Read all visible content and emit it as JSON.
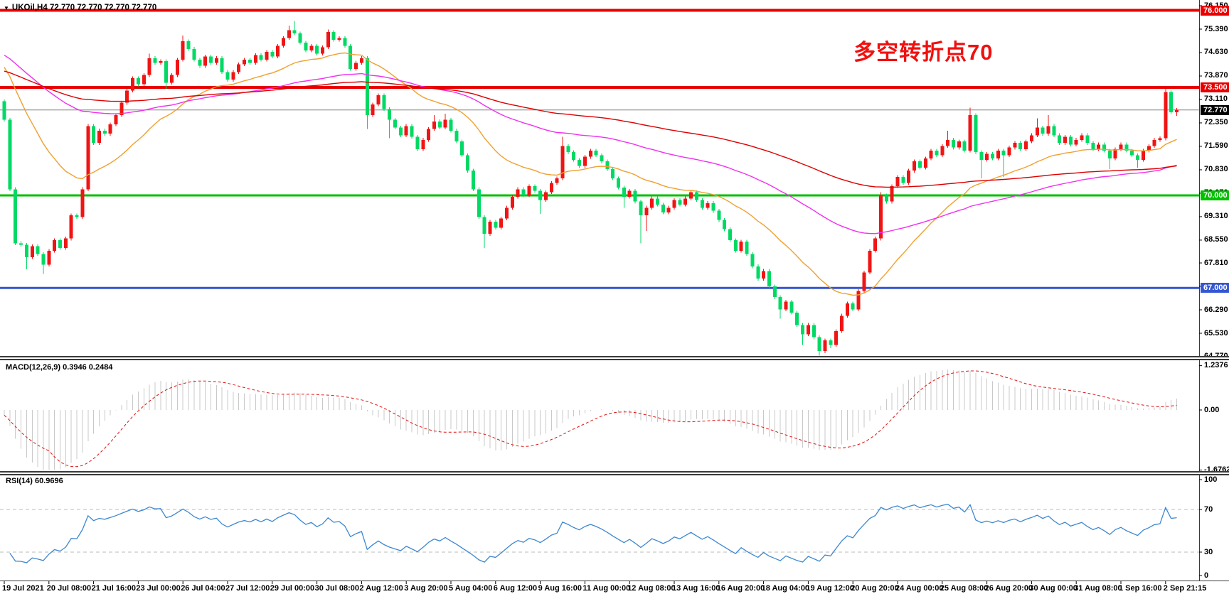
{
  "symbol_bar": {
    "dropdown_icon": "▼",
    "text": "UKOil,H4 72.770 72.770 72.770 72.770"
  },
  "annotation": {
    "text": "多空转折点70",
    "color": "#f01010"
  },
  "chart_data": {
    "type": "candlestick",
    "title": "UKOil,H4",
    "symbol": "UKOil",
    "timeframe": "H4",
    "color_convention": "chinese (red = up, green = down)",
    "bull_color": "#f01414",
    "bear_color": "#00d964",
    "first_open": 73.05,
    "closes": [
      72.45,
      70.2,
      68.45,
      68.4,
      68.0,
      68.35,
      68.1,
      67.75,
      68.2,
      68.55,
      68.3,
      68.6,
      69.35,
      69.3,
      70.2,
      72.25,
      71.7,
      72.1,
      72.0,
      72.3,
      72.6,
      73.0,
      73.4,
      73.8,
      73.6,
      73.9,
      74.45,
      74.3,
      74.35,
      73.65,
      73.9,
      74.4,
      75.0,
      74.75,
      74.4,
      74.2,
      74.5,
      74.3,
      74.45,
      74.0,
      73.75,
      74.0,
      74.25,
      74.4,
      74.3,
      74.55,
      74.4,
      74.65,
      74.5,
      74.85,
      75.1,
      75.35,
      75.25,
      74.95,
      74.7,
      74.85,
      74.6,
      74.8,
      75.3,
      75.05,
      75.1,
      74.85,
      74.1,
      74.3,
      74.45,
      72.6,
      72.95,
      73.25,
      72.8,
      72.45,
      72.2,
      71.95,
      72.25,
      71.9,
      71.5,
      71.8,
      72.15,
      72.4,
      72.2,
      72.45,
      72.1,
      71.75,
      71.3,
      70.8,
      70.2,
      69.3,
      68.75,
      69.15,
      68.95,
      69.25,
      69.6,
      69.95,
      70.2,
      70.0,
      70.3,
      70.15,
      69.85,
      70.1,
      70.4,
      70.55,
      71.6,
      71.4,
      71.15,
      70.95,
      71.25,
      71.45,
      71.3,
      71.1,
      70.85,
      70.55,
      70.25,
      69.95,
      70.15,
      69.8,
      69.35,
      69.6,
      69.9,
      69.7,
      69.45,
      69.6,
      69.85,
      69.7,
      69.9,
      70.1,
      69.85,
      69.6,
      69.75,
      69.5,
      69.2,
      68.9,
      68.55,
      68.2,
      68.5,
      68.1,
      67.7,
      67.3,
      67.55,
      67.05,
      66.7,
      66.3,
      66.55,
      66.2,
      65.8,
      65.5,
      65.8,
      65.4,
      64.95,
      65.3,
      65.15,
      65.6,
      66.1,
      66.5,
      66.3,
      66.9,
      67.5,
      68.2,
      68.6,
      70.0,
      69.8,
      70.3,
      70.6,
      70.4,
      70.8,
      71.1,
      70.9,
      71.2,
      71.45,
      71.3,
      71.6,
      71.8,
      71.55,
      71.75,
      71.45,
      72.6,
      71.4,
      71.15,
      71.35,
      71.2,
      71.45,
      71.3,
      71.55,
      71.7,
      71.5,
      71.75,
      71.95,
      72.2,
      72.0,
      72.25,
      71.95,
      71.7,
      71.9,
      71.65,
      71.8,
      71.95,
      71.7,
      71.5,
      71.65,
      71.45,
      71.2,
      71.5,
      71.65,
      71.45,
      71.3,
      71.15,
      71.45,
      71.6,
      71.8,
      71.85,
      73.35,
      72.7,
      72.77
    ],
    "default_wick": 0.06,
    "wick_overrides": {
      "4": [
        0,
        0.4
      ],
      "7": [
        0,
        0.3
      ],
      "26": [
        0.15,
        0
      ],
      "29": [
        0,
        0.2
      ],
      "32": [
        0.18,
        0
      ],
      "51": [
        0.15,
        0
      ],
      "52": [
        0.3,
        0
      ],
      "58": [
        0.08,
        0
      ],
      "65": [
        0,
        0.45
      ],
      "69": [
        0,
        0.6
      ],
      "77": [
        0.2,
        0
      ],
      "79": [
        0.2,
        0
      ],
      "86": [
        0,
        0.45
      ],
      "96": [
        0,
        0.45
      ],
      "100": [
        0.3,
        0
      ],
      "111": [
        0,
        0.35
      ],
      "114": [
        0,
        0.9
      ],
      "115": [
        0,
        0.5
      ],
      "139": [
        0,
        0.3
      ],
      "143": [
        0,
        0.35
      ],
      "146": [
        0,
        0.15
      ],
      "148": [
        0.05,
        0.1
      ],
      "157": [
        0.1,
        0
      ],
      "169": [
        0.3,
        0
      ],
      "173": [
        0.25,
        0
      ],
      "175": [
        0,
        0.6
      ],
      "179": [
        0,
        0.7
      ],
      "185": [
        0.3,
        0
      ],
      "187": [
        0.35,
        0
      ],
      "198": [
        0,
        0.35
      ],
      "203": [
        0,
        0.25
      ],
      "208": [
        0.1,
        0
      ],
      "210": [
        0.05,
        0.12
      ]
    },
    "price_axis": {
      "ticks": [
        76.15,
        75.39,
        74.63,
        73.87,
        73.11,
        72.35,
        71.59,
        70.83,
        70.07,
        69.31,
        68.55,
        67.81,
        67.05,
        66.29,
        65.53,
        64.77
      ],
      "min": 64.75,
      "max": 76.33
    },
    "levels": [
      {
        "price": 76.0,
        "label": "76.000",
        "color": "#e80000",
        "thickness": 4
      },
      {
        "price": 73.5,
        "label": "73.500",
        "color": "#e80000",
        "thickness": 4
      },
      {
        "price": 70.0,
        "label": "70.000",
        "color": "#00c000",
        "thickness": 3
      },
      {
        "price": 67.0,
        "label": "67.000",
        "color": "#3456d1",
        "thickness": 3
      }
    ],
    "current_price": {
      "value": 72.77,
      "label": "72.770",
      "line_color": "#808080",
      "badge_bg": "#000000"
    },
    "moving_averages": [
      {
        "name": "ma-fast-orange",
        "period": 25,
        "seed": 74.3,
        "color": "#f0a030"
      },
      {
        "name": "ma-mid-magenta",
        "period": 75,
        "seed": 74.6,
        "color": "#f030f0"
      },
      {
        "name": "ma-slow-red",
        "period": 150,
        "seed": 74.05,
        "color": "#dd0000"
      }
    ],
    "x_label_texts": [
      "19 Jul 2021",
      "20 Jul 08:00",
      "21 Jul 16:00",
      "23 Jul 00:00",
      "26 Jul 04:00",
      "27 Jul 12:00",
      "29 Jul 00:00",
      "30 Jul 08:00",
      "2 Aug 12:00",
      "3 Aug 20:00",
      "5 Aug 04:00",
      "6 Aug 12:00",
      "9 Aug 16:00",
      "11 Aug 00:00",
      "12 Aug 08:00",
      "13 Aug 16:00",
      "16 Aug 20:00",
      "18 Aug 04:00",
      "19 Aug 12:00",
      "20 Aug 20:00",
      "24 Aug 00:00",
      "25 Aug 08:00",
      "26 Aug 20:00",
      "30 Aug 00:00",
      "31 Aug 08:00",
      "1 Sep 16:00",
      "2 Sep 21:15"
    ],
    "x_label_indices": [
      0,
      8,
      16,
      24,
      32,
      40,
      48,
      56,
      64,
      72,
      80,
      88,
      96,
      104,
      112,
      120,
      128,
      136,
      144,
      152,
      160,
      168,
      176,
      184,
      192,
      200,
      208
    ],
    "macd": {
      "label": "MACD(12,26,9) 0.3946 0.2484",
      "params": [
        12,
        26,
        9
      ],
      "value_main": 0.3946,
      "value_signal": 0.2484,
      "axis_ticks": [
        1.2376,
        0.0,
        -1.6762
      ],
      "bar_color": "#c9c9c9",
      "signal_color": "#e01010"
    },
    "rsi": {
      "label": "RSI(14) 60.9696",
      "period": 14,
      "value": 60.9696,
      "axis_ticks": [
        100,
        70,
        30,
        0
      ],
      "guide_levels": [
        70,
        30
      ],
      "line_color": "#3d87d0",
      "guide_color": "#bbbbbb"
    }
  }
}
